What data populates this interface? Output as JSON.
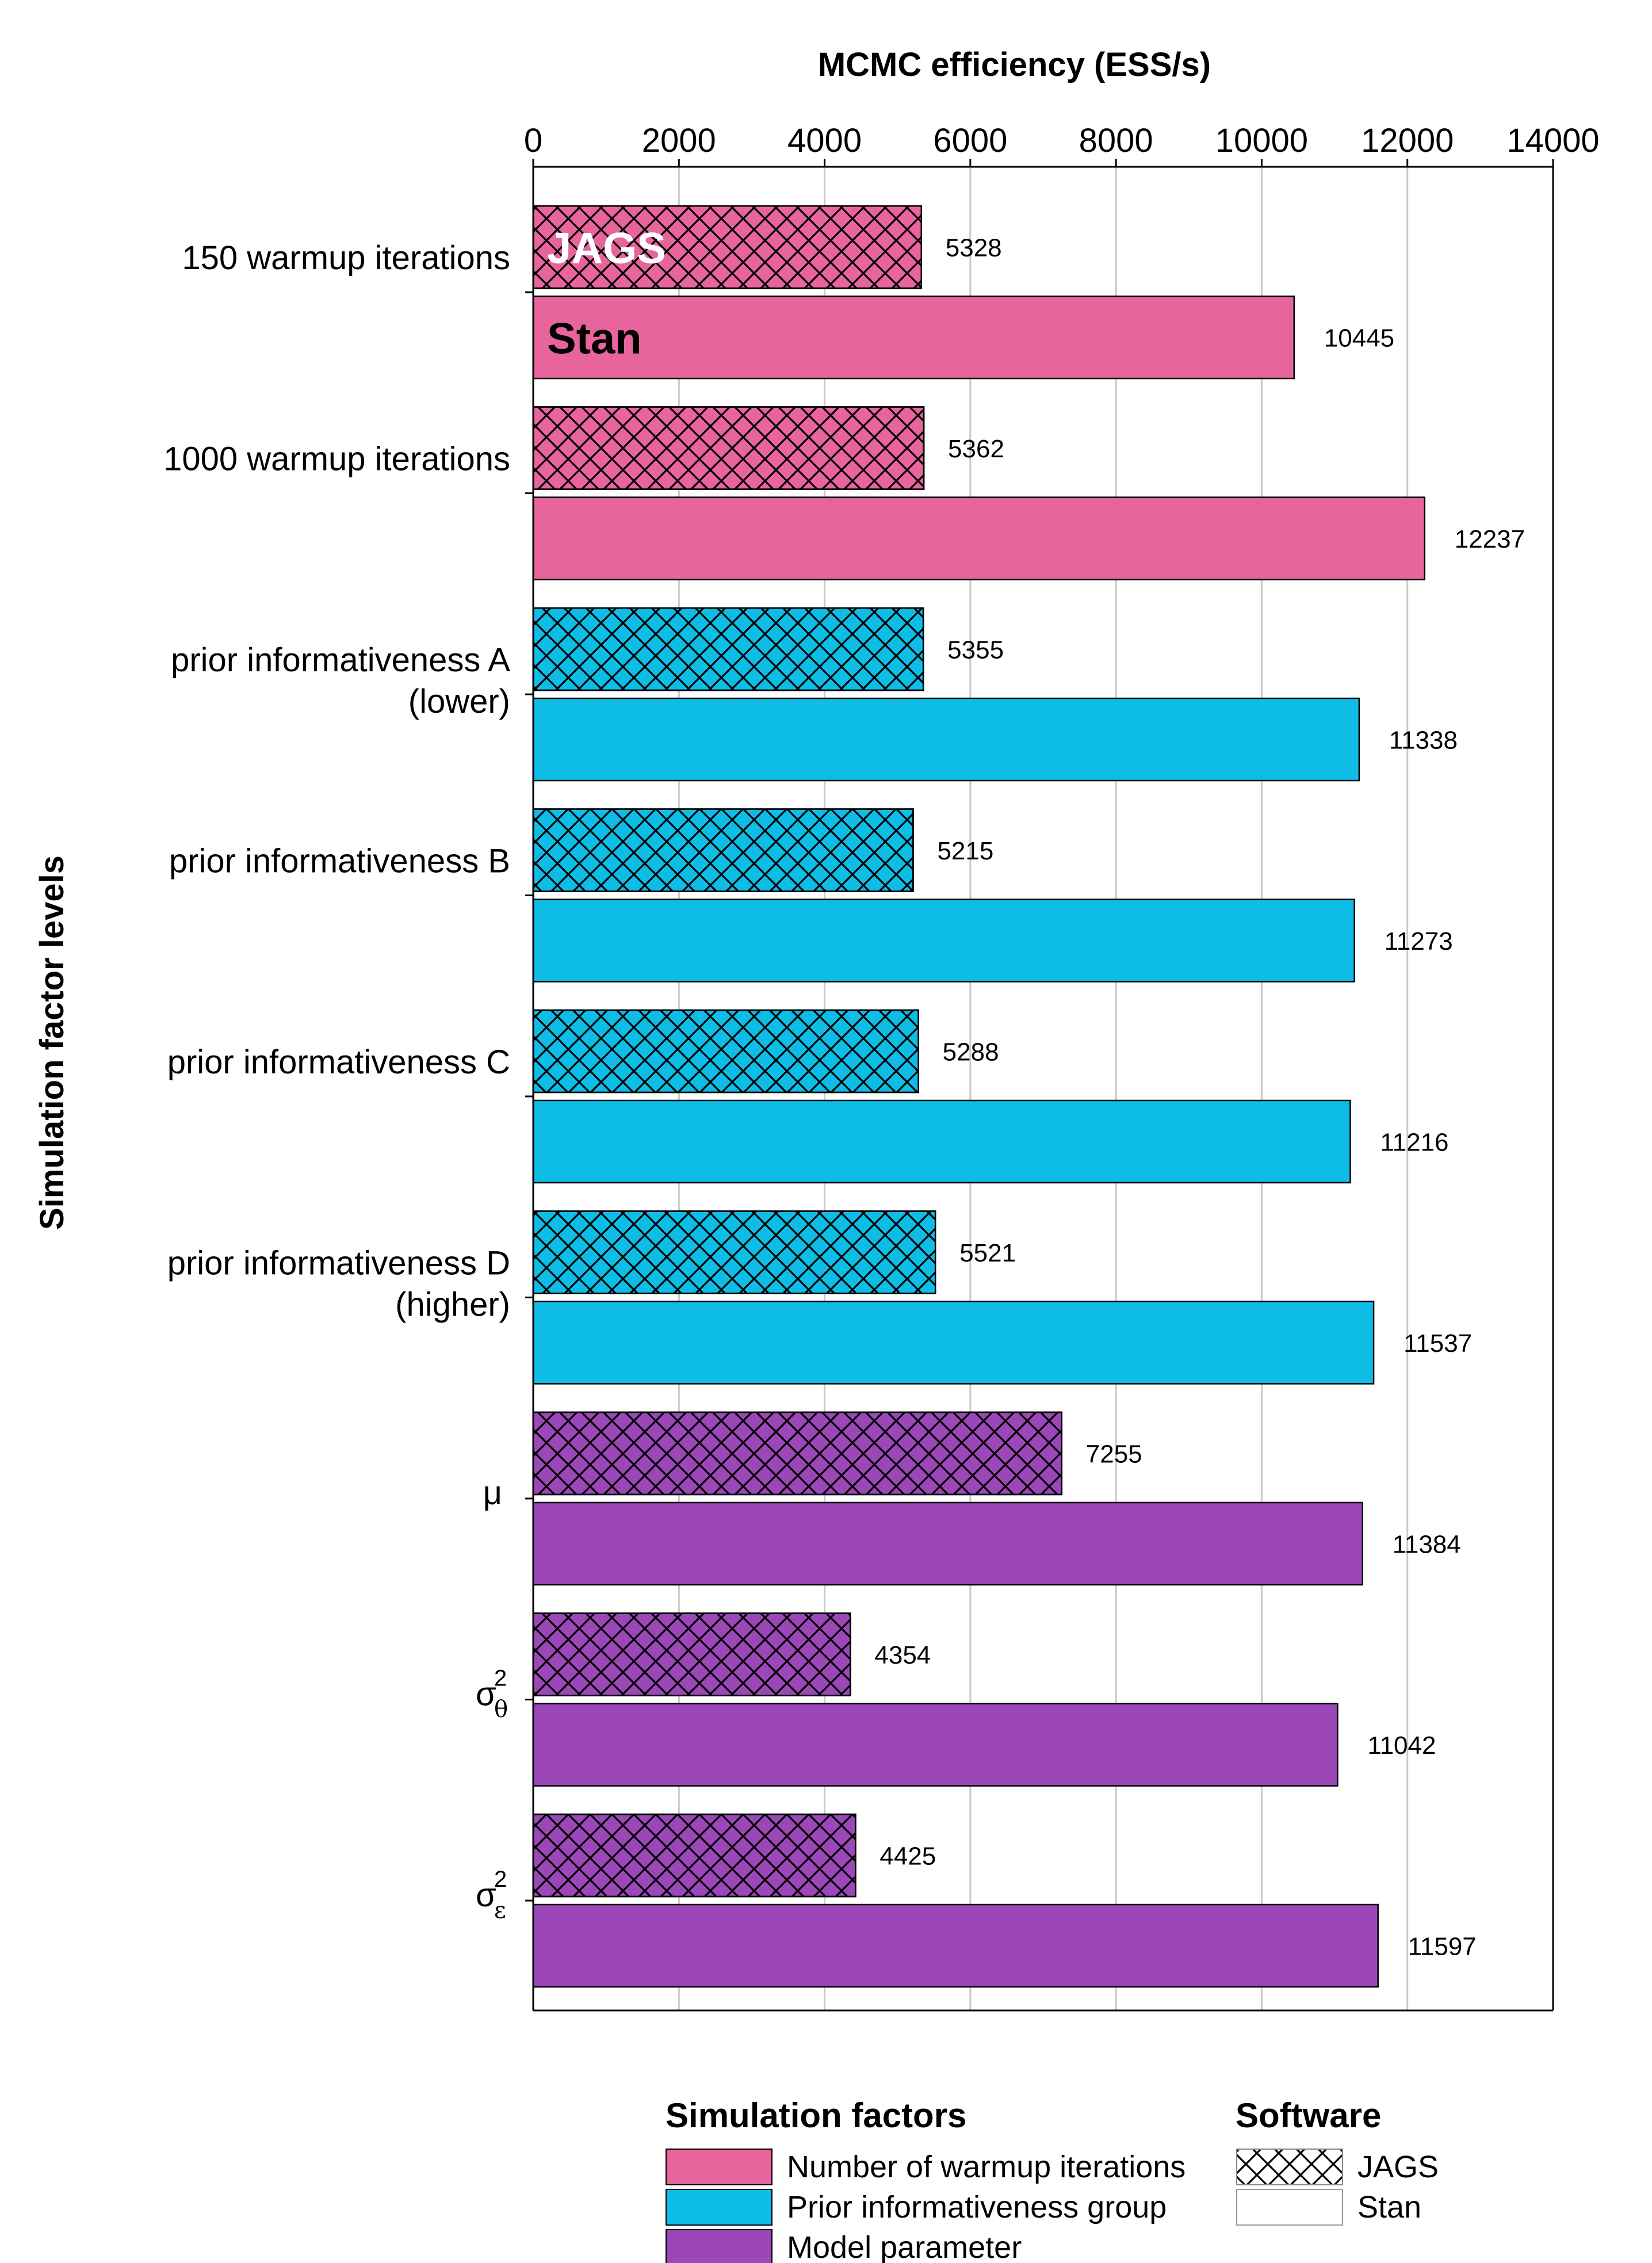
{
  "chart_data": {
    "type": "bar",
    "orientation": "horizontal",
    "xlabel": "MCMC efficiency (ESS/s)",
    "ylabel": "Simulation factor levels",
    "xlim": [
      0,
      14000
    ],
    "xticks": [
      "0",
      "2000",
      "4000",
      "6000",
      "8000",
      "10000",
      "12000",
      "14000"
    ],
    "xtick_values": [
      0,
      2000,
      4000,
      6000,
      8000,
      10000,
      12000,
      14000
    ],
    "grid": "vertical",
    "colors": {
      "warmup": "#e8649c",
      "prior": "#0ebde6",
      "param": "#9b47b8"
    },
    "series": [
      {
        "name": "JAGS",
        "pattern": "crosshatch"
      },
      {
        "name": "Stan",
        "pattern": "solid"
      }
    ],
    "categories": [
      {
        "id": "warmup150",
        "lines": [
          "150 warmup iterations"
        ],
        "group": "warmup",
        "jags": 5328,
        "stan": 10445,
        "jags_label": "5328",
        "stan_label": "10445"
      },
      {
        "id": "warmup1000",
        "lines": [
          "1000 warmup iterations"
        ],
        "group": "warmup",
        "jags": 5362,
        "stan": 12237,
        "jags_label": "5362",
        "stan_label": "12237"
      },
      {
        "id": "priorA",
        "lines": [
          "prior informativeness A",
          "(lower)"
        ],
        "group": "prior",
        "jags": 5355,
        "stan": 11338,
        "jags_label": "5355",
        "stan_label": "11338"
      },
      {
        "id": "priorB",
        "lines": [
          "prior informativeness B"
        ],
        "group": "prior",
        "jags": 5215,
        "stan": 11273,
        "jags_label": "5215",
        "stan_label": "11273"
      },
      {
        "id": "priorC",
        "lines": [
          "prior informativeness C"
        ],
        "group": "prior",
        "jags": 5288,
        "stan": 11216,
        "jags_label": "5288",
        "stan_label": "11216"
      },
      {
        "id": "priorD",
        "lines": [
          "prior informativeness D",
          "(higher)"
        ],
        "group": "prior",
        "jags": 5521,
        "stan": 11537,
        "jags_label": "5521",
        "stan_label": "11537"
      },
      {
        "id": "mu",
        "symbol": "μ",
        "group": "param",
        "jags": 7255,
        "stan": 11384,
        "jags_label": "7255",
        "stan_label": "11384"
      },
      {
        "id": "sigma_theta",
        "symbol": "σ",
        "sub": "θ",
        "sup": "2",
        "group": "param",
        "jags": 4354,
        "stan": 11042,
        "jags_label": "4354",
        "stan_label": "11042"
      },
      {
        "id": "sigma_eps",
        "symbol": "σ",
        "sub": "ε",
        "sup": "2",
        "group": "param",
        "jags": 4425,
        "stan": 11597,
        "jags_label": "4425",
        "stan_label": "11597"
      }
    ],
    "in_bar_labels": {
      "jags": "JAGS",
      "stan": "Stan"
    },
    "legend": {
      "factors_title": "Simulation factors",
      "factors": [
        {
          "label": "Number of warmup iterations",
          "group": "warmup"
        },
        {
          "label": "Prior informativeness group",
          "group": "prior"
        },
        {
          "label": "Model parameter",
          "group": "param"
        }
      ],
      "software_title": "Software",
      "software": [
        {
          "label": "JAGS",
          "pattern": "crosshatch"
        },
        {
          "label": "Stan",
          "pattern": "solid"
        }
      ]
    }
  }
}
